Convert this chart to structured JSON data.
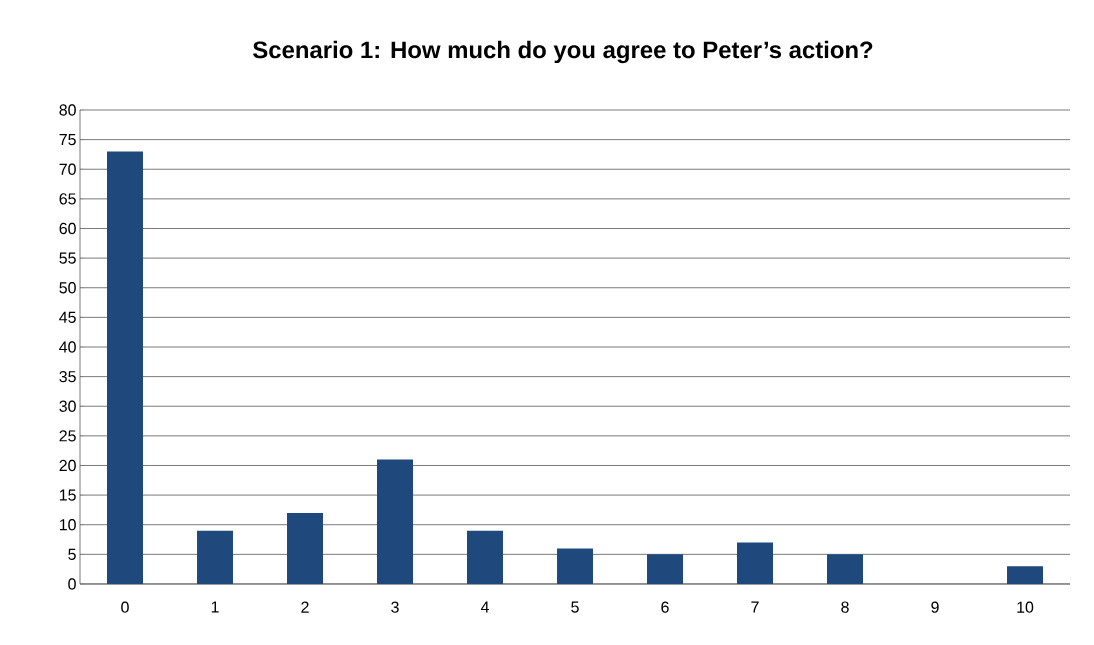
{
  "chart_data": {
    "type": "bar",
    "title": "Scenario 1: How much do you agree to Peter’s action?",
    "categories": [
      "0",
      "1",
      "2",
      "3",
      "4",
      "5",
      "6",
      "7",
      "8",
      "9",
      "10"
    ],
    "values": [
      73,
      9,
      12,
      21,
      9,
      6,
      5,
      7,
      5,
      0,
      3
    ],
    "color": "#1f497d",
    "ylim": [
      0,
      80
    ],
    "yticks": [
      0,
      5,
      10,
      15,
      20,
      25,
      30,
      35,
      40,
      45,
      50,
      55,
      60,
      65,
      70,
      75,
      80
    ],
    "grid": "y"
  }
}
